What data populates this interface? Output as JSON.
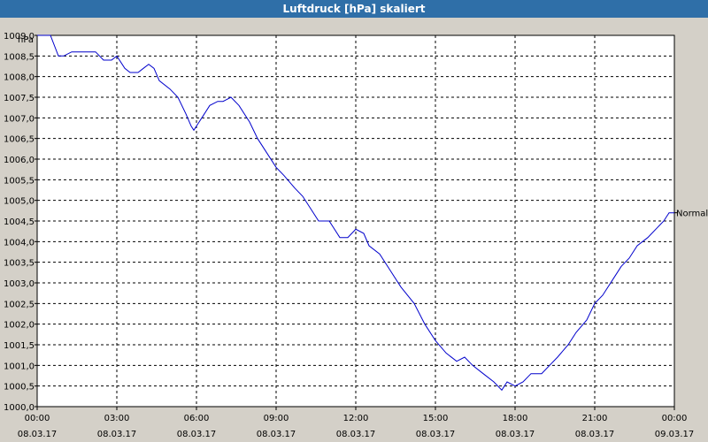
{
  "window": {
    "title": "Luftdruck [hPa] skaliert"
  },
  "chart_data": {
    "type": "line",
    "title": "Luftdruck [hPa] skaliert",
    "ylabel": "hPa",
    "ylim": [
      1000.0,
      1009.0
    ],
    "ytick_labels": [
      "1009,0",
      "1008,5",
      "1008,0",
      "1007,5",
      "1007,0",
      "1006,5",
      "1006,0",
      "1005,5",
      "1005,0",
      "1004,5",
      "1004,0",
      "1003,5",
      "1003,0",
      "1002,5",
      "1002,0",
      "1001,5",
      "1001,0",
      "1000,5",
      "1000,0"
    ],
    "xlim": [
      0,
      24
    ],
    "xticks": [
      {
        "time": "00:00",
        "date": "08.03.17"
      },
      {
        "time": "03:00",
        "date": "08.03.17"
      },
      {
        "time": "06:00",
        "date": "08.03.17"
      },
      {
        "time": "09:00",
        "date": "08.03.17"
      },
      {
        "time": "12:00",
        "date": "08.03.17"
      },
      {
        "time": "15:00",
        "date": "08.03.17"
      },
      {
        "time": "18:00",
        "date": "08.03.17"
      },
      {
        "time": "21:00",
        "date": "08.03.17"
      },
      {
        "time": "00:00",
        "date": "09.03.17"
      }
    ],
    "grid": true,
    "series": [
      {
        "name": "Normal",
        "color": "#0000cc",
        "points": [
          [
            0.0,
            1009.0
          ],
          [
            0.5,
            1009.0
          ],
          [
            0.8,
            1008.5
          ],
          [
            1.0,
            1008.5
          ],
          [
            1.3,
            1008.6
          ],
          [
            2.2,
            1008.6
          ],
          [
            2.5,
            1008.4
          ],
          [
            2.8,
            1008.4
          ],
          [
            3.0,
            1008.5
          ],
          [
            3.3,
            1008.2
          ],
          [
            3.5,
            1008.1
          ],
          [
            3.8,
            1008.1
          ],
          [
            4.0,
            1008.2
          ],
          [
            4.2,
            1008.3
          ],
          [
            4.4,
            1008.2
          ],
          [
            4.6,
            1007.9
          ],
          [
            5.0,
            1007.7
          ],
          [
            5.3,
            1007.5
          ],
          [
            5.6,
            1007.1
          ],
          [
            5.8,
            1006.8
          ],
          [
            5.9,
            1006.7
          ],
          [
            6.1,
            1006.9
          ],
          [
            6.3,
            1007.1
          ],
          [
            6.5,
            1007.3
          ],
          [
            6.8,
            1007.4
          ],
          [
            7.0,
            1007.4
          ],
          [
            7.3,
            1007.5
          ],
          [
            7.6,
            1007.3
          ],
          [
            8.0,
            1006.9
          ],
          [
            8.3,
            1006.5
          ],
          [
            8.7,
            1006.1
          ],
          [
            9.0,
            1005.8
          ],
          [
            9.3,
            1005.6
          ],
          [
            9.7,
            1005.3
          ],
          [
            10.0,
            1005.1
          ],
          [
            10.3,
            1004.8
          ],
          [
            10.6,
            1004.5
          ],
          [
            11.0,
            1004.5
          ],
          [
            11.4,
            1004.1
          ],
          [
            11.7,
            1004.1
          ],
          [
            12.0,
            1004.3
          ],
          [
            12.3,
            1004.2
          ],
          [
            12.5,
            1003.9
          ],
          [
            12.9,
            1003.7
          ],
          [
            13.3,
            1003.3
          ],
          [
            13.7,
            1002.9
          ],
          [
            14.2,
            1002.5
          ],
          [
            14.6,
            1002.0
          ],
          [
            15.0,
            1001.6
          ],
          [
            15.4,
            1001.3
          ],
          [
            15.8,
            1001.1
          ],
          [
            16.1,
            1001.2
          ],
          [
            16.4,
            1001.0
          ],
          [
            16.8,
            1000.8
          ],
          [
            17.2,
            1000.6
          ],
          [
            17.5,
            1000.4
          ],
          [
            17.7,
            1000.6
          ],
          [
            18.0,
            1000.5
          ],
          [
            18.3,
            1000.6
          ],
          [
            18.6,
            1000.8
          ],
          [
            19.0,
            1000.8
          ],
          [
            19.3,
            1001.0
          ],
          [
            19.6,
            1001.2
          ],
          [
            20.0,
            1001.5
          ],
          [
            20.3,
            1001.8
          ],
          [
            20.7,
            1002.1
          ],
          [
            21.0,
            1002.5
          ],
          [
            21.3,
            1002.7
          ],
          [
            21.7,
            1003.1
          ],
          [
            22.0,
            1003.4
          ],
          [
            22.3,
            1003.6
          ],
          [
            22.6,
            1003.9
          ],
          [
            23.0,
            1004.1
          ],
          [
            23.3,
            1004.3
          ],
          [
            23.6,
            1004.5
          ],
          [
            23.8,
            1004.7
          ],
          [
            24.0,
            1004.7
          ]
        ]
      }
    ]
  }
}
